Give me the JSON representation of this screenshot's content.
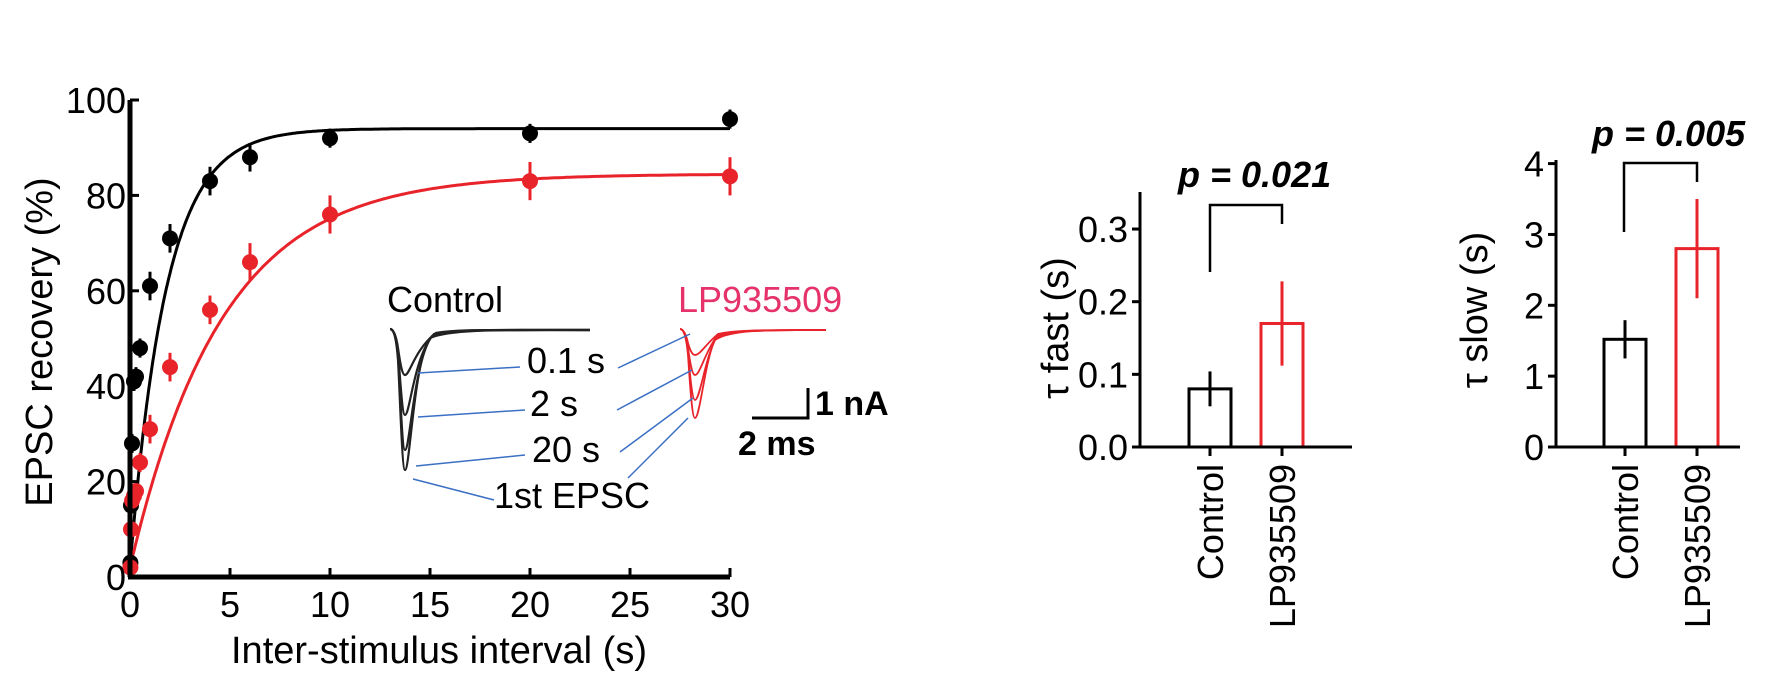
{
  "colors": {
    "control": "#000000",
    "drug": "#e8232a",
    "drug_label": "#e5326b",
    "pointer": "#3a6fc4"
  },
  "chart_data": [
    {
      "type": "scatter",
      "title": "",
      "xlabel": "Inter-stimulus interval (s)",
      "ylabel": "EPSC recovery (%)",
      "xlim": [
        0,
        30
      ],
      "ylim": [
        0,
        100
      ],
      "xticks": [
        "0",
        "5",
        "10",
        "15",
        "20",
        "25",
        "30"
      ],
      "yticks": [
        "0",
        "20",
        "40",
        "60",
        "80",
        "100"
      ],
      "series": [
        {
          "name": "",
          "color": "#000000",
          "x": [
            0.02,
            0.05,
            0.1,
            0.2,
            0.3,
            0.5,
            1,
            2,
            4,
            6,
            10,
            20,
            30
          ],
          "y": [
            3,
            15,
            28,
            41,
            42,
            48,
            61,
            71,
            83,
            88,
            92,
            93,
            96
          ],
          "err": [
            1,
            2,
            2,
            2,
            2,
            2,
            3,
            3,
            3,
            3,
            2,
            2,
            2
          ],
          "fit": {
            "plateau": 94,
            "tau": 1.8,
            "y0": 2
          }
        },
        {
          "name": "",
          "color": "#e8232a",
          "x": [
            0.02,
            0.05,
            0.1,
            0.2,
            0.3,
            0.5,
            1,
            2,
            4,
            6,
            10,
            20,
            30
          ],
          "y": [
            2,
            10,
            16,
            17,
            18,
            24,
            31,
            44,
            56,
            66,
            76,
            83,
            84
          ],
          "err": [
            1,
            2,
            2,
            2,
            2,
            2,
            3,
            3,
            3,
            4,
            4,
            4,
            4
          ],
          "fit": {
            "plateau": 84.5,
            "tau": 4.6,
            "y0": 2
          }
        }
      ],
      "inset": {
        "control_label": "Control",
        "drug_label": "LP935509",
        "trace_labels": [
          "0.1 s",
          "2 s",
          "20 s",
          "1st EPSC"
        ],
        "scale_y": "1 nA",
        "scale_x": "2 ms"
      }
    },
    {
      "type": "bar",
      "ylabel": "τ fast (s)",
      "categories": [
        "Control",
        "LP935509"
      ],
      "values": [
        0.08,
        0.17
      ],
      "errors": [
        0.024,
        0.058
      ],
      "ylim": [
        0,
        0.35
      ],
      "yticks": [
        "0.0",
        "0.1",
        "0.2",
        "0.3"
      ],
      "annotation": "p = 0.021"
    },
    {
      "type": "bar",
      "ylabel": "τ slow (s)",
      "categories": [
        "Control",
        "LP935509"
      ],
      "values": [
        1.52,
        2.8
      ],
      "errors": [
        0.27,
        0.7
      ],
      "ylim": [
        0,
        4
      ],
      "yticks": [
        "0",
        "1",
        "2",
        "3",
        "4"
      ],
      "annotation": "p = 0.005"
    }
  ]
}
